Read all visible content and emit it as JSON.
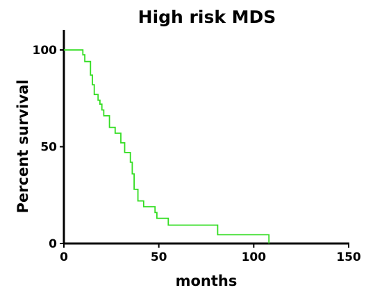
{
  "chart_data": {
    "type": "line",
    "title": "High risk MDS",
    "xlabel": "months",
    "ylabel": "Percent survival",
    "xlim": [
      0,
      150
    ],
    "ylim": [
      0,
      100
    ],
    "xticks": [
      0,
      50,
      100,
      150
    ],
    "yticks": [
      0,
      50,
      100
    ],
    "grid": false,
    "series": [
      {
        "color": "#33dd22",
        "step": true,
        "points": [
          [
            0,
            100
          ],
          [
            10,
            100
          ],
          [
            10,
            97.5
          ],
          [
            11,
            97.5
          ],
          [
            11,
            94
          ],
          [
            14,
            94
          ],
          [
            14,
            87
          ],
          [
            15,
            87
          ],
          [
            15,
            82
          ],
          [
            16,
            82
          ],
          [
            16,
            77
          ],
          [
            18,
            77
          ],
          [
            18,
            74
          ],
          [
            19,
            74
          ],
          [
            19,
            72
          ],
          [
            20,
            72
          ],
          [
            20,
            69
          ],
          [
            21,
            69
          ],
          [
            21,
            66
          ],
          [
            24,
            66
          ],
          [
            24,
            60
          ],
          [
            27,
            60
          ],
          [
            27,
            57
          ],
          [
            30,
            57
          ],
          [
            30,
            52
          ],
          [
            32,
            52
          ],
          [
            32,
            47
          ],
          [
            35,
            47
          ],
          [
            35,
            42
          ],
          [
            36,
            42
          ],
          [
            36,
            36
          ],
          [
            37,
            36
          ],
          [
            37,
            28
          ],
          [
            39,
            28
          ],
          [
            39,
            22
          ],
          [
            42,
            22
          ],
          [
            42,
            19
          ],
          [
            48,
            19
          ],
          [
            48,
            16
          ],
          [
            49,
            16
          ],
          [
            49,
            13
          ],
          [
            55,
            13
          ],
          [
            55,
            9.5
          ],
          [
            81,
            9.5
          ],
          [
            81,
            4.5
          ],
          [
            108,
            4.5
          ],
          [
            108,
            0
          ]
        ]
      }
    ]
  }
}
